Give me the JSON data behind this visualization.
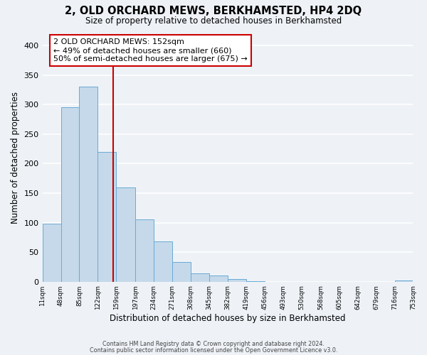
{
  "title": "2, OLD ORCHARD MEWS, BERKHAMSTED, HP4 2DQ",
  "subtitle": "Size of property relative to detached houses in Berkhamsted",
  "xlabel": "Distribution of detached houses by size in Berkhamsted",
  "ylabel": "Number of detached properties",
  "bin_edges": [
    11,
    48,
    85,
    122,
    159,
    197,
    234,
    271,
    308,
    345,
    382,
    419,
    456,
    493,
    530,
    568,
    605,
    642,
    679,
    716,
    753
  ],
  "bar_heights": [
    98,
    295,
    330,
    220,
    160,
    105,
    68,
    33,
    14,
    11,
    4,
    1,
    0,
    0,
    0,
    0,
    0,
    0,
    0,
    2
  ],
  "bar_color": "#c5d9ea",
  "bar_edge_color": "#6aaad4",
  "vline_x": 152,
  "vline_color": "#cc0000",
  "annotation_text": "2 OLD ORCHARD MEWS: 152sqm\n← 49% of detached houses are smaller (660)\n50% of semi-detached houses are larger (675) →",
  "annotation_box_color": "white",
  "annotation_box_edge": "#cc0000",
  "ylim": [
    0,
    420
  ],
  "xlim": [
    11,
    753
  ],
  "tick_labels": [
    "11sqm",
    "48sqm",
    "85sqm",
    "122sqm",
    "159sqm",
    "197sqm",
    "234sqm",
    "271sqm",
    "308sqm",
    "345sqm",
    "382sqm",
    "419sqm",
    "456sqm",
    "493sqm",
    "530sqm",
    "568sqm",
    "605sqm",
    "642sqm",
    "679sqm",
    "716sqm",
    "753sqm"
  ],
  "footer1": "Contains HM Land Registry data © Crown copyright and database right 2024.",
  "footer2": "Contains public sector information licensed under the Open Government Licence v3.0.",
  "bg_color": "#eef2f7",
  "grid_color": "white",
  "yticks": [
    0,
    50,
    100,
    150,
    200,
    250,
    300,
    350,
    400
  ]
}
